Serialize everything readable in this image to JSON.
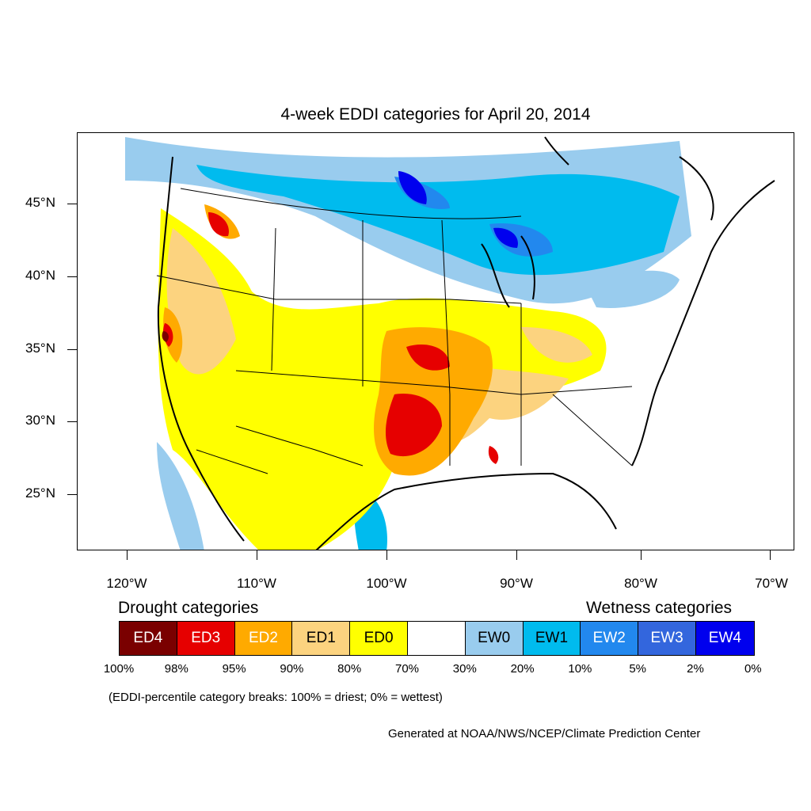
{
  "title": "4-week EDDI categories for April 20, 2014",
  "y_axis": {
    "ticks": [
      "45°N",
      "40°N",
      "35°N",
      "30°N",
      "25°N"
    ]
  },
  "x_axis": {
    "ticks": [
      "120°W",
      "110°W",
      "100°W",
      "90°W",
      "80°W",
      "70°W"
    ]
  },
  "legend": {
    "drought_heading": "Drought categories",
    "wetness_heading": "Wetness categories",
    "categories": [
      {
        "label": "ED4",
        "color": "#7a0000",
        "text_color": "#ffffff"
      },
      {
        "label": "ED3",
        "color": "#e60000",
        "text_color": "#ffffff"
      },
      {
        "label": "ED2",
        "color": "#ffaa00",
        "text_color": "#ffffff"
      },
      {
        "label": "ED1",
        "color": "#fcd37f",
        "text_color": "#000000"
      },
      {
        "label": "ED0",
        "color": "#ffff00",
        "text_color": "#000000"
      },
      {
        "label": "",
        "color": "#ffffff",
        "text_color": "#000000"
      },
      {
        "label": "EW0",
        "color": "#99ccee",
        "text_color": "#000000"
      },
      {
        "label": "EW1",
        "color": "#00bbee",
        "text_color": "#000000"
      },
      {
        "label": "EW2",
        "color": "#2288ee",
        "text_color": "#ffffff"
      },
      {
        "label": "EW3",
        "color": "#3366dd",
        "text_color": "#ffffff"
      },
      {
        "label": "EW4",
        "color": "#0000ee",
        "text_color": "#ffffff"
      }
    ],
    "breaks": [
      "100%",
      "98%",
      "95%",
      "90%",
      "80%",
      "70%",
      "30%",
      "20%",
      "10%",
      "5%",
      "2%",
      "0%"
    ]
  },
  "note": "(EDDI-percentile category breaks: 100% = driest; 0% = wettest)",
  "credit": "Generated at NOAA/NWS/NCEP/Climate Prediction Center"
}
